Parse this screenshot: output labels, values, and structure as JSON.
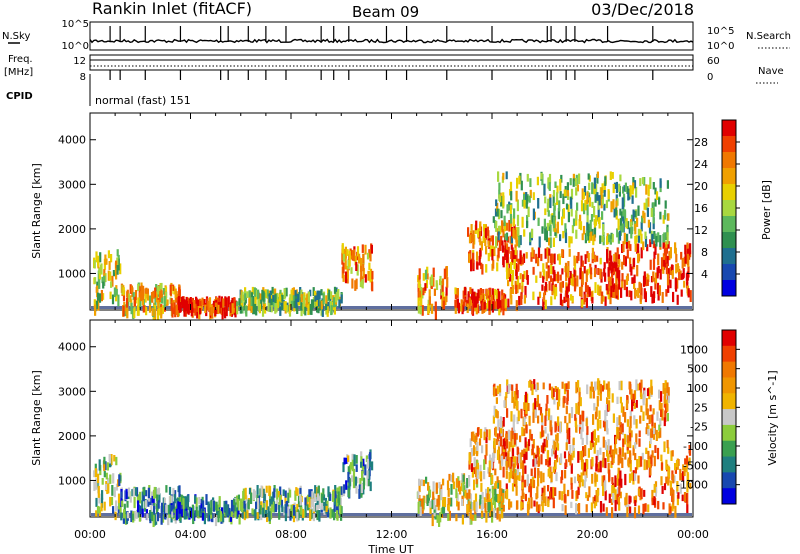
{
  "header": {
    "station": "Rankin Inlet (fitACF)",
    "beam": "Beam 09",
    "date": "03/Dec/2018"
  },
  "status_panels": {
    "nsky_label": "N.Sky",
    "nsky_ticks": [
      "10^5",
      "10^0"
    ],
    "nsearch_label": "N.Search",
    "nsearch_ticks": [
      "10^5",
      "10^0"
    ],
    "freq_label": [
      "Freq.",
      "[MHz]"
    ],
    "freq_ticks": [
      "12",
      "8"
    ],
    "nave_label": "Nave",
    "nave_ticks": [
      "60",
      "0"
    ],
    "cpid_label": "CPID",
    "cpid_value": "normal (fast) 151"
  },
  "chart_data": [
    {
      "type": "heatmap",
      "ylabel": "Slant Range [km]",
      "xlabel": "",
      "xlim": [
        "00:00",
        "24:00"
      ],
      "ylim": [
        180,
        4600
      ],
      "y_ticks": [
        "4000",
        "3000",
        "2000",
        "1000"
      ],
      "colorbar": {
        "label": "Power [dB]",
        "ticks": [
          "28",
          "24",
          "20",
          "16",
          "12",
          "8",
          "4"
        ],
        "colors": [
          "#e00000",
          "#f04000",
          "#f07800",
          "#f0a000",
          "#e8d000",
          "#a8d840",
          "#5cb85c",
          "#2f9050",
          "#1f6f8f",
          "#1848b0",
          "#0000e0"
        ]
      },
      "scatter_regions": [
        {
          "t": [
            0.1,
            1.2
          ],
          "r": [
            300,
            1600
          ],
          "level": 0.55
        },
        {
          "t": [
            1.2,
            3.6
          ],
          "r": [
            200,
            800
          ],
          "level": 0.65
        },
        {
          "t": [
            3.2,
            5.8
          ],
          "r": [
            220,
            500
          ],
          "level": 0.9
        },
        {
          "t": [
            5.8,
            10.0
          ],
          "r": [
            250,
            700
          ],
          "level": 0.45
        },
        {
          "t": [
            10.0,
            11.2
          ],
          "r": [
            800,
            1700
          ],
          "level": 0.75
        },
        {
          "t": [
            13.0,
            14.2
          ],
          "r": [
            200,
            1200
          ],
          "level": 0.7
        },
        {
          "t": [
            14.5,
            16.5
          ],
          "r": [
            300,
            700
          ],
          "level": 0.85
        },
        {
          "t": [
            15.0,
            17.0
          ],
          "r": [
            1200,
            2200
          ],
          "level": 0.8
        },
        {
          "t": [
            16.5,
            21.0
          ],
          "r": [
            400,
            1600
          ],
          "level": 0.8
        },
        {
          "t": [
            20.5,
            23.9
          ],
          "r": [
            500,
            1800
          ],
          "level": 0.9
        },
        {
          "t": [
            16.0,
            23.0
          ],
          "r": [
            1800,
            3300
          ],
          "level": 0.45
        }
      ]
    },
    {
      "type": "heatmap",
      "ylabel": "Slant Range [km]",
      "xlabel": "Time UT",
      "xlim": [
        "00:00",
        "24:00"
      ],
      "ylim": [
        180,
        4600
      ],
      "x_ticks": [
        "00:00",
        "04:00",
        "08:00",
        "12:00",
        "16:00",
        "20:00",
        "00:00"
      ],
      "y_ticks": [
        "4000",
        "3000",
        "2000",
        "1000"
      ],
      "colorbar": {
        "label": "Velocity [m s^-1]",
        "ticks": [
          "1000",
          "500",
          "100",
          "25",
          "-25",
          "-100",
          "-500",
          "-1000"
        ],
        "colors": [
          "#e00000",
          "#f04000",
          "#f07800",
          "#f09600",
          "#f0b400",
          "#c8c8c8",
          "#8ccc3c",
          "#3aa050",
          "#1f7f7f",
          "#1848b0",
          "#0000e0"
        ]
      },
      "scatter_regions": [
        {
          "t": [
            0.1,
            1.2
          ],
          "r": [
            300,
            1600
          ],
          "level": 0.4
        },
        {
          "t": [
            1.2,
            3.6
          ],
          "r": [
            200,
            900
          ],
          "level": 0.3
        },
        {
          "t": [
            3.2,
            6.0
          ],
          "r": [
            220,
            700
          ],
          "level": 0.25
        },
        {
          "t": [
            6.0,
            10.0
          ],
          "r": [
            250,
            900
          ],
          "level": 0.35
        },
        {
          "t": [
            10.0,
            11.2
          ],
          "r": [
            800,
            1700
          ],
          "level": 0.3
        },
        {
          "t": [
            13.0,
            16.5
          ],
          "r": [
            200,
            1200
          ],
          "level": 0.55
        },
        {
          "t": [
            15.0,
            17.0
          ],
          "r": [
            1200,
            2200
          ],
          "level": 0.7
        },
        {
          "t": [
            16.5,
            23.9
          ],
          "r": [
            400,
            1800
          ],
          "level": 0.75
        },
        {
          "t": [
            16.0,
            23.0
          ],
          "r": [
            1800,
            3300
          ],
          "level": 0.7
        }
      ]
    }
  ]
}
